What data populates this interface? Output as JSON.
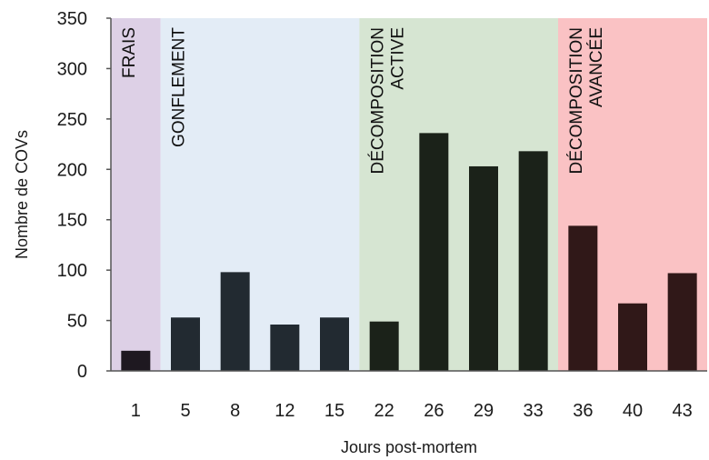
{
  "chart_data": {
    "type": "bar",
    "xlabel": "Jours post-mortem",
    "ylabel": "Nombre de COVs",
    "ylim": [
      0,
      350
    ],
    "yticks": [
      0,
      50,
      100,
      150,
      200,
      250,
      300,
      350
    ],
    "categories": [
      "1",
      "5",
      "8",
      "12",
      "15",
      "22",
      "26",
      "29",
      "33",
      "36",
      "40",
      "43"
    ],
    "values": [
      20,
      53,
      98,
      46,
      53,
      49,
      236,
      203,
      218,
      144,
      67,
      97
    ],
    "bar_colors": [
      "#1e1820",
      "#222a31",
      "#222a31",
      "#222a31",
      "#222a31",
      "#1b2219",
      "#1b2219",
      "#1b2219",
      "#1b2219",
      "#301818",
      "#301818",
      "#301818"
    ],
    "phases": [
      {
        "label_lines": [
          "FRAIS"
        ],
        "start_index": 0,
        "end_index": 0,
        "color": "#ddd0e6"
      },
      {
        "label_lines": [
          "GONFLEMENT"
        ],
        "start_index": 1,
        "end_index": 4,
        "color": "#e3ecf6"
      },
      {
        "label_lines": [
          "DÉCOMPOSITION",
          "ACTIVE"
        ],
        "start_index": 5,
        "end_index": 8,
        "color": "#d6e5d2"
      },
      {
        "label_lines": [
          "DÉCOMPOSITION",
          "AVANCÉE"
        ],
        "start_index": 9,
        "end_index": 11,
        "color": "#fac2c4"
      }
    ],
    "grid": false,
    "legend": "none"
  }
}
